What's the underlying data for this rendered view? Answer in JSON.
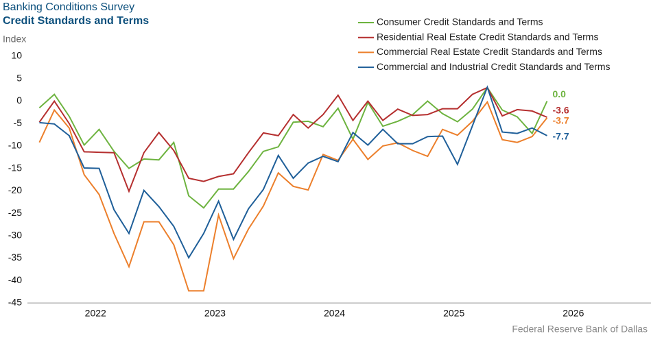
{
  "chart_data": {
    "type": "line",
    "title": "Banking Conditions Survey",
    "subtitle": "Credit Standards and Terms",
    "y_label": "Index",
    "source": "Federal Reserve Bank of Dallas",
    "x": [
      2021.53,
      2021.655,
      2021.78,
      2021.905,
      2022.03,
      2022.155,
      2022.28,
      2022.405,
      2022.53,
      2022.655,
      2022.78,
      2022.905,
      2023.03,
      2023.155,
      2023.28,
      2023.405,
      2023.53,
      2023.655,
      2023.78,
      2023.905,
      2024.03,
      2024.155,
      2024.28,
      2024.405,
      2024.53,
      2024.655,
      2024.78,
      2024.905,
      2025.03,
      2025.155,
      2025.28,
      2025.405,
      2025.53,
      2025.655,
      2025.78
    ],
    "xlim": [
      2021.43,
      2026.65
    ],
    "xticks": [
      2022,
      2023,
      2024,
      2025,
      2026
    ],
    "ylim": [
      -45,
      10
    ],
    "yticks": [
      10,
      5,
      0,
      -5,
      -10,
      -15,
      -20,
      -25,
      -30,
      -35,
      -40,
      -45
    ],
    "legend": "top-right",
    "series": [
      {
        "name": "Consumer Credit Standards and Terms",
        "color": "#6db33f",
        "values": [
          -1.5,
          1.5,
          -3.4,
          -9.8,
          -6.3,
          -11.2,
          -15.0,
          -12.9,
          -13.1,
          -9.2,
          -21.1,
          -23.8,
          -19.6,
          -19.6,
          -15.7,
          -11.2,
          -10.2,
          -4.7,
          -4.5,
          -5.7,
          -1.6,
          -8.5,
          -0.3,
          -5.6,
          -4.5,
          -3.0,
          0,
          -2.8,
          -4.6,
          -1.8,
          3.0,
          -2.0,
          -3.5,
          -7.2,
          0
        ],
        "value_labels": [
          null,
          null,
          null,
          null,
          null,
          null,
          null,
          null,
          null,
          null,
          null,
          null,
          null,
          null,
          null,
          null,
          null,
          null,
          null,
          null,
          null,
          null,
          null,
          null,
          null,
          null,
          null,
          null,
          null,
          null,
          null,
          null,
          null,
          null,
          "0.0"
        ]
      },
      {
        "name": "Residential Real Estate Credit Standards and Terms",
        "color": "#b52f2f",
        "values": [
          -4.7,
          0,
          -5.0,
          -11.3,
          -11.4,
          -11.5,
          -20.1,
          -11.5,
          -7.0,
          -11.0,
          -17.2,
          -17.9,
          -16.8,
          -16.2,
          -11.5,
          -7.1,
          -7.7,
          -3.0,
          -6.0,
          -3.0,
          1.3,
          -4.3,
          0,
          -4.3,
          -1.8,
          -3.2,
          -3.0,
          -1.7,
          -1.7,
          1.5,
          3.0,
          -3.3,
          -1.9,
          -2.2,
          -3.6
        ],
        "value_labels": [
          null,
          null,
          null,
          null,
          null,
          null,
          null,
          null,
          null,
          null,
          null,
          null,
          null,
          null,
          null,
          null,
          null,
          null,
          null,
          null,
          null,
          null,
          null,
          null,
          null,
          null,
          null,
          null,
          null,
          null,
          null,
          null,
          null,
          null,
          "-3.6"
        ]
      },
      {
        "name": "Commercial Real Estate Credit Standards and Terms",
        "color": "#ec7f2b",
        "values": [
          -9.2,
          -2.0,
          -6.0,
          -16.4,
          -20.8,
          -29.5,
          -36.9,
          -26.9,
          -26.9,
          -32.0,
          -42.3,
          -42.3,
          -25.4,
          -35.1,
          -28.5,
          -23.4,
          -16.0,
          -19.0,
          -19.8,
          -11.9,
          -13.2,
          -8.5,
          -13.0,
          -10.0,
          -9.3,
          -11.0,
          -12.3,
          -6.3,
          -7.6,
          -4.5,
          -0.2,
          -8.6,
          -9.2,
          -7.9,
          -3.7
        ],
        "value_labels": [
          null,
          null,
          null,
          null,
          null,
          null,
          null,
          null,
          null,
          null,
          null,
          null,
          null,
          null,
          null,
          null,
          null,
          null,
          null,
          null,
          null,
          null,
          null,
          null,
          null,
          null,
          null,
          null,
          null,
          null,
          null,
          null,
          null,
          null,
          "-3.7"
        ]
      },
      {
        "name": "Commercial and Industrial Credit Standards and Terms",
        "color": "#1f5f99",
        "values": [
          -4.8,
          -5.1,
          -7.7,
          -14.9,
          -15.0,
          -24.2,
          -29.5,
          -19.9,
          -23.5,
          -27.9,
          -34.9,
          -29.5,
          -22.3,
          -30.8,
          -24.0,
          -19.7,
          -12.1,
          -17.2,
          -13.8,
          -12.3,
          -13.5,
          -7.0,
          -9.8,
          -6.3,
          -9.5,
          -9.5,
          -7.9,
          -7.8,
          -14.1,
          -5.5,
          3.1,
          -6.9,
          -7.2,
          -6.0,
          -7.7
        ],
        "value_labels": [
          null,
          null,
          null,
          null,
          null,
          null,
          null,
          null,
          null,
          null,
          null,
          null,
          null,
          null,
          null,
          null,
          null,
          null,
          null,
          null,
          null,
          null,
          null,
          null,
          null,
          null,
          null,
          null,
          null,
          null,
          null,
          null,
          null,
          null,
          "-7.7"
        ]
      }
    ]
  }
}
